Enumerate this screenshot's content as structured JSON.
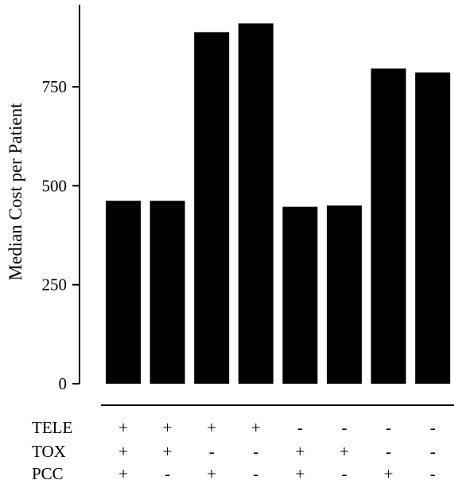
{
  "chart_data": {
    "type": "bar",
    "title": "",
    "xlabel": "",
    "ylabel": "Median Cost per Patient",
    "ylim": [
      0,
      950
    ],
    "yticks": [
      0,
      250,
      500,
      750
    ],
    "ytick_labels": [
      "0",
      "250",
      "500",
      "750"
    ],
    "grid": false,
    "legend": "none",
    "bar_color": "#000000",
    "categories": [
      "TELE+ TOX+ PCC+",
      "TELE+ TOX+ PCC-",
      "TELE+ TOX- PCC+",
      "TELE+ TOX- PCC-",
      "TELE- TOX+ PCC+",
      "TELE- TOX+ PCC-",
      "TELE- TOX- PCC+",
      "TELE- TOX- PCC-"
    ],
    "values": [
      462,
      462,
      888,
      910,
      447,
      450,
      796,
      786
    ],
    "factor_table": {
      "rows": [
        {
          "label": "TELE",
          "signs": [
            "+",
            "+",
            "+",
            "+",
            "-",
            "-",
            "-",
            "-"
          ]
        },
        {
          "label": "TOX",
          "signs": [
            "+",
            "+",
            "-",
            "-",
            "+",
            "+",
            "-",
            "-"
          ]
        },
        {
          "label": "PCC",
          "signs": [
            "+",
            "-",
            "+",
            "-",
            "+",
            "-",
            "+",
            "-"
          ]
        }
      ]
    }
  }
}
